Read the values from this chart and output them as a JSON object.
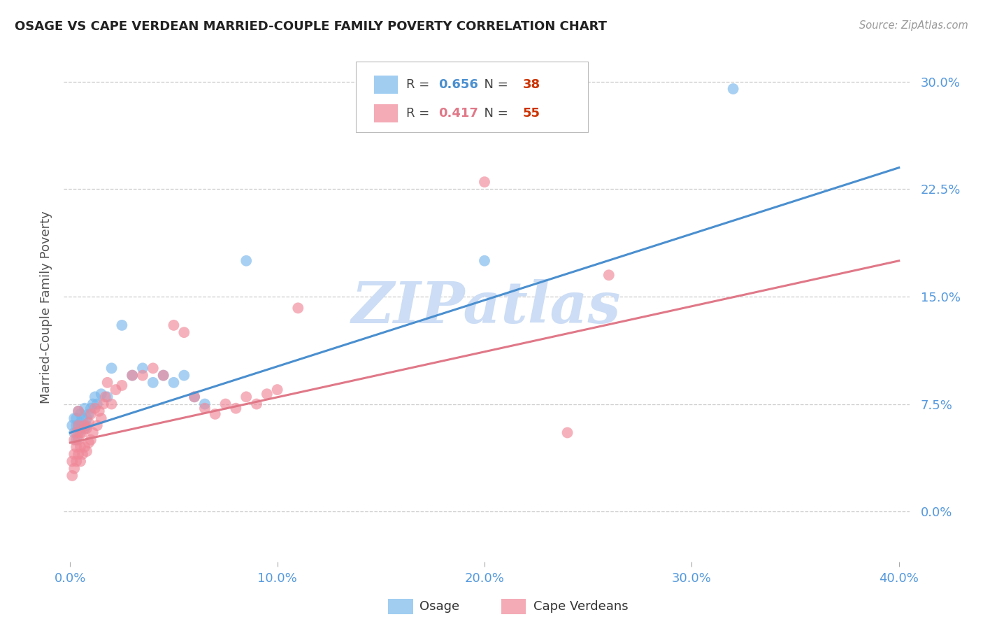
{
  "title": "OSAGE VS CAPE VERDEAN MARRIED-COUPLE FAMILY POVERTY CORRELATION CHART",
  "source": "Source: ZipAtlas.com",
  "ylabel": "Married-Couple Family Poverty",
  "xtick_labels": [
    "0.0%",
    "10.0%",
    "20.0%",
    "30.0%",
    "40.0%"
  ],
  "xtick_vals": [
    0.0,
    0.1,
    0.2,
    0.3,
    0.4
  ],
  "ytick_labels": [
    "0.0%",
    "7.5%",
    "15.0%",
    "22.5%",
    "30.0%"
  ],
  "ytick_vals": [
    0.0,
    0.075,
    0.15,
    0.225,
    0.3
  ],
  "xlim": [
    -0.003,
    0.405
  ],
  "ylim": [
    -0.035,
    0.32
  ],
  "osage_R": "0.656",
  "osage_N": "38",
  "cape_R": "0.417",
  "cape_N": "55",
  "osage_color": "#7ab8ec",
  "cape_color": "#f08898",
  "osage_line_color": "#4a8fcf",
  "cape_line_color": "#e07888",
  "legend_edge_color": "#bbbbbb",
  "grid_color": "#cccccc",
  "tick_label_color": "#5599dd",
  "watermark": "ZIPatlas",
  "watermark_color": "#ccddf5",
  "title_color": "#222222",
  "source_color": "#999999",
  "ylabel_color": "#555555",
  "bottom_legend_label_color": "#333333",
  "osage_x": [
    0.001,
    0.002,
    0.002,
    0.003,
    0.003,
    0.003,
    0.004,
    0.004,
    0.004,
    0.005,
    0.005,
    0.005,
    0.006,
    0.006,
    0.007,
    0.007,
    0.008,
    0.008,
    0.009,
    0.01,
    0.011,
    0.012,
    0.013,
    0.015,
    0.018,
    0.02,
    0.025,
    0.03,
    0.035,
    0.04,
    0.045,
    0.05,
    0.055,
    0.06,
    0.065,
    0.085,
    0.2,
    0.32
  ],
  "osage_y": [
    0.06,
    0.055,
    0.065,
    0.05,
    0.06,
    0.065,
    0.055,
    0.06,
    0.07,
    0.058,
    0.062,
    0.068,
    0.06,
    0.065,
    0.058,
    0.072,
    0.06,
    0.065,
    0.068,
    0.072,
    0.075,
    0.08,
    0.075,
    0.082,
    0.08,
    0.1,
    0.13,
    0.095,
    0.1,
    0.09,
    0.095,
    0.09,
    0.095,
    0.08,
    0.075,
    0.175,
    0.175,
    0.295
  ],
  "cape_x": [
    0.001,
    0.001,
    0.002,
    0.002,
    0.002,
    0.003,
    0.003,
    0.003,
    0.004,
    0.004,
    0.004,
    0.004,
    0.005,
    0.005,
    0.005,
    0.006,
    0.006,
    0.007,
    0.007,
    0.008,
    0.008,
    0.009,
    0.009,
    0.01,
    0.01,
    0.011,
    0.012,
    0.013,
    0.014,
    0.015,
    0.016,
    0.017,
    0.018,
    0.02,
    0.022,
    0.025,
    0.03,
    0.035,
    0.04,
    0.045,
    0.05,
    0.055,
    0.06,
    0.065,
    0.07,
    0.075,
    0.08,
    0.085,
    0.09,
    0.095,
    0.1,
    0.11,
    0.2,
    0.24,
    0.26
  ],
  "cape_y": [
    0.025,
    0.035,
    0.03,
    0.04,
    0.05,
    0.035,
    0.045,
    0.055,
    0.04,
    0.05,
    0.06,
    0.07,
    0.035,
    0.045,
    0.055,
    0.04,
    0.055,
    0.045,
    0.06,
    0.042,
    0.058,
    0.048,
    0.062,
    0.05,
    0.068,
    0.055,
    0.072,
    0.06,
    0.07,
    0.065,
    0.075,
    0.08,
    0.09,
    0.075,
    0.085,
    0.088,
    0.095,
    0.095,
    0.1,
    0.095,
    0.13,
    0.125,
    0.08,
    0.072,
    0.068,
    0.075,
    0.072,
    0.08,
    0.075,
    0.082,
    0.085,
    0.142,
    0.23,
    0.055,
    0.165
  ]
}
